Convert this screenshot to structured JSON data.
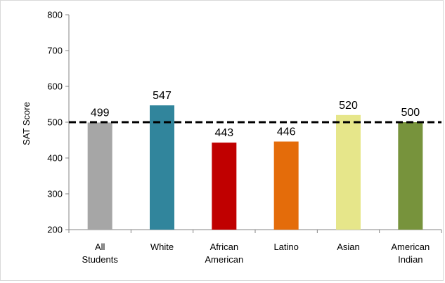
{
  "chart_data": {
    "type": "bar",
    "categories": [
      [
        "All",
        "Students"
      ],
      [
        "White"
      ],
      [
        "African",
        "American"
      ],
      [
        "Latino"
      ],
      [
        "Asian"
      ],
      [
        "American",
        "Indian"
      ]
    ],
    "values": [
      499,
      547,
      443,
      446,
      520,
      500
    ],
    "data_labels": [
      "499",
      "547",
      "443",
      "446",
      "520",
      "500"
    ],
    "colors": [
      "#a6a6a6",
      "#31859c",
      "#c00000",
      "#e46c0a",
      "#e6e68a",
      "#77933c"
    ],
    "ylabel": "SAT Score",
    "ylim": [
      200,
      800
    ],
    "yticks": [
      200,
      300,
      400,
      500,
      600,
      700,
      800
    ],
    "reference_line": {
      "value": 500,
      "style": "dashed",
      "color": "#000000"
    },
    "grid": false,
    "legend": "none"
  }
}
